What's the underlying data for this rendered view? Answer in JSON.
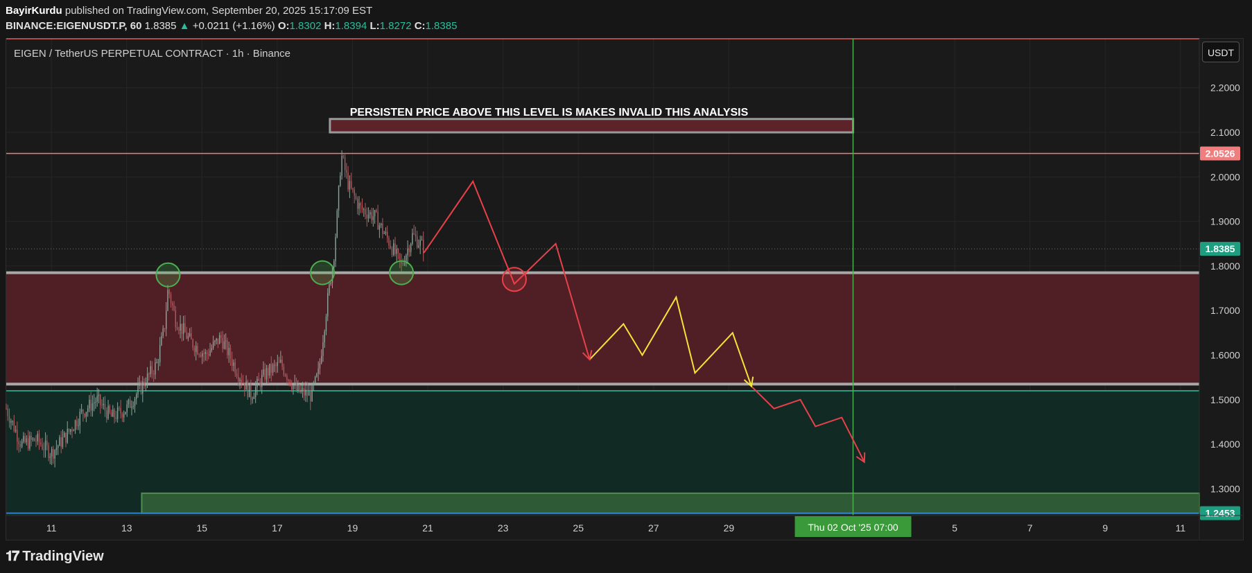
{
  "header": {
    "author": "BayirKurdu",
    "published": "published on TradingView.com, September 20, 2025 15:17:09 EST",
    "symbol": "BINANCE:EIGENUSDT.P, 60",
    "last": "1.8385",
    "change": "+0.0211 (+1.16%)",
    "o_label": "O:",
    "o_value": "1.8302",
    "h_label": "H:",
    "h_value": "1.8394",
    "l_label": "L:",
    "l_value": "1.8272",
    "c_label": "C:",
    "c_value": "1.8385"
  },
  "chart_title": "EIGEN / TetherUS PERPETUAL CONTRACT · 1h · Binance",
  "currency_button": "USDT",
  "annotation_text": "PERSISTEN PRICE ABOVE THIS LEVEL IS MAKES INVALID THIS ANALYSIS",
  "price_labels": {
    "resistance": "2.0526",
    "current": "1.8385",
    "low_line": "1.2453"
  },
  "crosshair_date": "Thu 02 Oct '25   07:00",
  "brand": "TradingView",
  "colors": {
    "background": "#1a1a1a",
    "red_zone": "#4f1f25",
    "green_zone": "#122a24",
    "resistance_line": "#f07e7e",
    "current_price": "#1e9e81",
    "projection_red": "#e8414a",
    "projection_yellow": "#f5e33c",
    "circle_green": "#4caf50",
    "vertical_line": "#4caf50"
  },
  "chart_data": {
    "type": "candlestick",
    "symbol": "EIGENUSDT.P",
    "interval": "1h",
    "y_ticks": [
      2.2,
      2.1,
      2.0,
      1.9,
      1.8,
      1.7,
      1.6,
      1.5,
      1.4,
      1.3
    ],
    "y_tick_labels": [
      "2.2000",
      "2.1000",
      "2.0000",
      "1.9000",
      "1.8000",
      "1.7000",
      "1.6000",
      "1.5000",
      "1.4000",
      "1.3000"
    ],
    "x_tick_labels": [
      "11",
      "13",
      "15",
      "17",
      "19",
      "21",
      "23",
      "25",
      "27",
      "29",
      "5",
      "7",
      "9",
      "11"
    ],
    "x_tick_days": [
      11,
      13,
      15,
      17,
      19,
      21,
      23,
      25,
      27,
      29,
      35,
      37,
      39,
      41
    ],
    "x_tick_note": "days of September 2025; values beyond 30 continue into October",
    "ylim": [
      1.24,
      2.31
    ],
    "xlim": [
      9.8,
      41.5
    ],
    "price_path": [
      [
        9.8,
        1.48
      ],
      [
        10.2,
        1.4
      ],
      [
        10.6,
        1.41
      ],
      [
        11.0,
        1.38
      ],
      [
        11.4,
        1.42
      ],
      [
        11.8,
        1.47
      ],
      [
        12.2,
        1.5
      ],
      [
        12.6,
        1.46
      ],
      [
        13.0,
        1.48
      ],
      [
        13.4,
        1.53
      ],
      [
        13.8,
        1.58
      ],
      [
        14.0,
        1.66
      ],
      [
        14.1,
        1.75
      ],
      [
        14.3,
        1.68
      ],
      [
        14.7,
        1.63
      ],
      [
        15.1,
        1.6
      ],
      [
        15.5,
        1.64
      ],
      [
        15.9,
        1.57
      ],
      [
        16.3,
        1.51
      ],
      [
        16.7,
        1.56
      ],
      [
        17.1,
        1.58
      ],
      [
        17.5,
        1.52
      ],
      [
        17.9,
        1.51
      ],
      [
        18.1,
        1.56
      ],
      [
        18.3,
        1.7
      ],
      [
        18.5,
        1.82
      ],
      [
        18.6,
        1.92
      ],
      [
        18.7,
        2.05
      ],
      [
        18.9,
        1.98
      ],
      [
        19.2,
        1.93
      ],
      [
        19.6,
        1.91
      ],
      [
        20.0,
        1.85
      ],
      [
        20.3,
        1.8
      ],
      [
        20.6,
        1.87
      ],
      [
        20.9,
        1.84
      ]
    ],
    "current_price": 1.8385,
    "levels": {
      "resistance_line": 2.0526,
      "invalidation_box": [
        2.1,
        2.13
      ],
      "red_zone": [
        1.535,
        1.785
      ],
      "green_zone_top": 1.52,
      "low_box": [
        1.245,
        1.29
      ],
      "low_line": 1.2453
    },
    "projection_red_1": [
      [
        20.9,
        1.83
      ],
      [
        22.2,
        1.99
      ],
      [
        23.3,
        1.76
      ],
      [
        24.4,
        1.85
      ],
      [
        25.3,
        1.59
      ]
    ],
    "projection_yellow": [
      [
        25.3,
        1.59
      ],
      [
        26.2,
        1.67
      ],
      [
        26.7,
        1.6
      ],
      [
        27.6,
        1.73
      ],
      [
        28.1,
        1.56
      ],
      [
        29.1,
        1.65
      ],
      [
        29.6,
        1.53
      ]
    ],
    "projection_red_2": [
      [
        29.6,
        1.53
      ],
      [
        30.2,
        1.48
      ],
      [
        30.9,
        1.5
      ],
      [
        31.3,
        1.44
      ],
      [
        32.0,
        1.46
      ],
      [
        32.6,
        1.36
      ]
    ],
    "circles_green": [
      [
        14.1,
        1.78
      ],
      [
        18.2,
        1.785
      ],
      [
        20.3,
        1.785
      ]
    ],
    "circle_red": [
      23.3,
      1.77
    ],
    "vertical_line_day": 32.3,
    "grid": true
  }
}
